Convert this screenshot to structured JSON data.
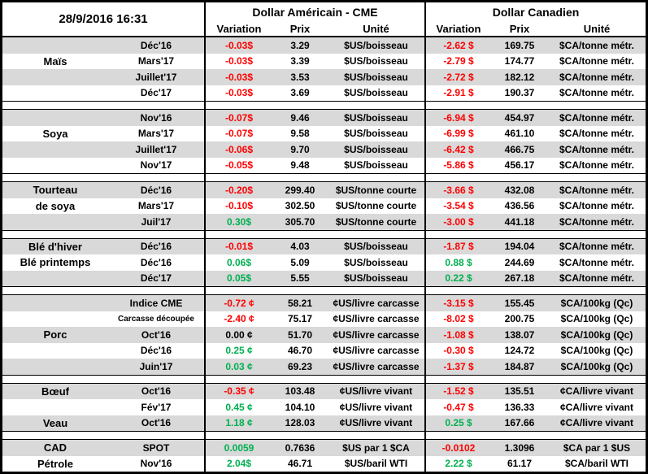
{
  "datetime": "28/9/2016 16:31",
  "header": {
    "group_us": "Dollar Américain - CME",
    "group_ca": "Dollar Canadien",
    "col_variation": "Variation",
    "col_prix": "Prix",
    "col_unite": "Unité"
  },
  "colors": {
    "neg": "#FF0000",
    "pos": "#00B050",
    "neutral": "#000000",
    "stripe": "#D9D9D9"
  },
  "sections": [
    {
      "name": "Maïs",
      "rows": [
        {
          "category": "",
          "term": "Déc'16",
          "us_var": "-0.03$",
          "us_color": "neg",
          "us_prix": "3.29",
          "us_unit": "$US/boisseau",
          "ca_var": "-2.62 $",
          "ca_color": "neg",
          "ca_prix": "169.75",
          "ca_unit": "$CA/tonne métr."
        },
        {
          "category": "Maïs",
          "term": "Mars'17",
          "us_var": "-0.03$",
          "us_color": "neg",
          "us_prix": "3.39",
          "us_unit": "$US/boisseau",
          "ca_var": "-2.79 $",
          "ca_color": "neg",
          "ca_prix": "174.77",
          "ca_unit": "$CA/tonne métr."
        },
        {
          "category": "",
          "term": "Juillet'17",
          "us_var": "-0.03$",
          "us_color": "neg",
          "us_prix": "3.53",
          "us_unit": "$US/boisseau",
          "ca_var": "-2.72 $",
          "ca_color": "neg",
          "ca_prix": "182.12",
          "ca_unit": "$CA/tonne métr."
        },
        {
          "category": "",
          "term": "Déc'17",
          "us_var": "-0.03$",
          "us_color": "neg",
          "us_prix": "3.69",
          "us_unit": "$US/boisseau",
          "ca_var": "-2.91 $",
          "ca_color": "neg",
          "ca_prix": "190.37",
          "ca_unit": "$CA/tonne métr."
        }
      ]
    },
    {
      "name": "Soya",
      "rows": [
        {
          "category": "",
          "term": "Nov'16",
          "us_var": "-0.07$",
          "us_color": "neg",
          "us_prix": "9.46",
          "us_unit": "$US/boisseau",
          "ca_var": "-6.94 $",
          "ca_color": "neg",
          "ca_prix": "454.97",
          "ca_unit": "$CA/tonne métr."
        },
        {
          "category": "Soya",
          "term": "Mars'17",
          "us_var": "-0.07$",
          "us_color": "neg",
          "us_prix": "9.58",
          "us_unit": "$US/boisseau",
          "ca_var": "-6.99 $",
          "ca_color": "neg",
          "ca_prix": "461.10",
          "ca_unit": "$CA/tonne métr."
        },
        {
          "category": "",
          "term": "Juillet'17",
          "us_var": "-0.06$",
          "us_color": "neg",
          "us_prix": "9.70",
          "us_unit": "$US/boisseau",
          "ca_var": "-6.42 $",
          "ca_color": "neg",
          "ca_prix": "466.75",
          "ca_unit": "$CA/tonne métr."
        },
        {
          "category": "",
          "term": "Nov'17",
          "us_var": "-0.05$",
          "us_color": "neg",
          "us_prix": "9.48",
          "us_unit": "$US/boisseau",
          "ca_var": "-5.86 $",
          "ca_color": "neg",
          "ca_prix": "456.17",
          "ca_unit": "$CA/tonne métr."
        }
      ]
    },
    {
      "name": "Tourteau de soya",
      "rows": [
        {
          "category": "Tourteau",
          "term": "Déc'16",
          "us_var": "-0.20$",
          "us_color": "neg",
          "us_prix": "299.40",
          "us_unit": "$US/tonne courte",
          "ca_var": "-3.66 $",
          "ca_color": "neg",
          "ca_prix": "432.08",
          "ca_unit": "$CA/tonne métr."
        },
        {
          "category": "de soya",
          "term": "Mars'17",
          "us_var": "-0.10$",
          "us_color": "neg",
          "us_prix": "302.50",
          "us_unit": "$US/tonne courte",
          "ca_var": "-3.54 $",
          "ca_color": "neg",
          "ca_prix": "436.56",
          "ca_unit": "$CA/tonne métr."
        },
        {
          "category": "",
          "term": "Juil'17",
          "us_var": "0.30$",
          "us_color": "pos",
          "us_prix": "305.70",
          "us_unit": "$US/tonne courte",
          "ca_var": "-3.00 $",
          "ca_color": "neg",
          "ca_prix": "441.18",
          "ca_unit": "$CA/tonne métr."
        }
      ]
    },
    {
      "name": "Blé",
      "rows": [
        {
          "category": "Blé d'hiver",
          "term": "Déc'16",
          "us_var": "-0.01$",
          "us_color": "neg",
          "us_prix": "4.03",
          "us_unit": "$US/boisseau",
          "ca_var": "-1.87 $",
          "ca_color": "neg",
          "ca_prix": "194.04",
          "ca_unit": "$CA/tonne métr."
        },
        {
          "category": "Blé printemps",
          "term": "Déc'16",
          "us_var": "0.06$",
          "us_color": "pos",
          "us_prix": "5.09",
          "us_unit": "$US/boisseau",
          "ca_var": "0.88 $",
          "ca_color": "pos",
          "ca_prix": "244.69",
          "ca_unit": "$CA/tonne métr."
        },
        {
          "category": "",
          "term": "Déc'17",
          "us_var": "0.05$",
          "us_color": "pos",
          "us_prix": "5.55",
          "us_unit": "$US/boisseau",
          "ca_var": "0.22 $",
          "ca_color": "pos",
          "ca_prix": "267.18",
          "ca_unit": "$CA/tonne métr."
        }
      ]
    },
    {
      "name": "Porc",
      "rows": [
        {
          "category": "",
          "term": "Indice CME",
          "us_var": "-0.72 ¢",
          "us_color": "neg",
          "us_prix": "58.21",
          "us_unit": "¢US/livre carcasse",
          "ca_var": "-3.15 $",
          "ca_color": "neg",
          "ca_prix": "155.45",
          "ca_unit": "$CA/100kg (Qc)"
        },
        {
          "category": "",
          "term": "Carcasse découpée",
          "small": true,
          "us_var": "-2.40 ¢",
          "us_color": "neg",
          "us_prix": "75.17",
          "us_unit": "¢US/livre carcasse",
          "ca_var": "-8.02 $",
          "ca_color": "neg",
          "ca_prix": "200.75",
          "ca_unit": "$CA/100kg (Qc)"
        },
        {
          "category": "Porc",
          "term": "Oct'16",
          "us_var": "0.00 ¢",
          "us_color": "neutral",
          "us_prix": "51.70",
          "us_unit": "¢US/livre carcasse",
          "ca_var": "-1.08 $",
          "ca_color": "neg",
          "ca_prix": "138.07",
          "ca_unit": "$CA/100kg (Qc)"
        },
        {
          "category": "",
          "term": "Déc'16",
          "us_var": "0.25 ¢",
          "us_color": "pos",
          "us_prix": "46.70",
          "us_unit": "¢US/livre carcasse",
          "ca_var": "-0.30 $",
          "ca_color": "neg",
          "ca_prix": "124.72",
          "ca_unit": "$CA/100kg (Qc)"
        },
        {
          "category": "",
          "term": "Juin'17",
          "us_var": "0.03 ¢",
          "us_color": "pos",
          "us_prix": "69.23",
          "us_unit": "¢US/livre carcasse",
          "ca_var": "-1.37 $",
          "ca_color": "neg",
          "ca_prix": "184.87",
          "ca_unit": "$CA/100kg (Qc)"
        }
      ]
    },
    {
      "name": "Bœuf / Veau",
      "rows": [
        {
          "category": "Bœuf",
          "term": "Oct'16",
          "us_var": "-0.35 ¢",
          "us_color": "neg",
          "us_prix": "103.48",
          "us_unit": "¢US/livre vivant",
          "ca_var": "-1.52 $",
          "ca_color": "neg",
          "ca_prix": "135.51",
          "ca_unit": "¢CA/livre vivant"
        },
        {
          "category": "",
          "term": "Fév'17",
          "us_var": "0.45 ¢",
          "us_color": "pos",
          "us_prix": "104.10",
          "us_unit": "¢US/livre vivant",
          "ca_var": "-0.47 $",
          "ca_color": "neg",
          "ca_prix": "136.33",
          "ca_unit": "¢CA/livre vivant"
        },
        {
          "category": "Veau",
          "term": "Oct'16",
          "us_var": "1.18 ¢",
          "us_color": "pos",
          "us_prix": "128.03",
          "us_unit": "¢US/livre vivant",
          "ca_var": "0.25 $",
          "ca_color": "pos",
          "ca_prix": "167.66",
          "ca_unit": "¢CA/livre vivant"
        }
      ]
    },
    {
      "name": "CAD / Pétrole",
      "rows": [
        {
          "category": "CAD",
          "term": "SPOT",
          "us_var": "0.0059",
          "us_color": "pos",
          "us_prix": "0.7636",
          "us_unit": "$US par 1 $CA",
          "ca_var": "-0.0102",
          "ca_color": "neg",
          "ca_prix": "1.3096",
          "ca_unit": "$CA par 1 $US"
        },
        {
          "category": "Pétrole",
          "term": "Nov'16",
          "us_var": "2.04$",
          "us_color": "pos",
          "us_prix": "46.71",
          "us_unit": "$US/baril WTI",
          "ca_var": "2.22 $",
          "ca_color": "pos",
          "ca_prix": "61.17",
          "ca_unit": "$CA/baril WTI"
        }
      ]
    }
  ]
}
